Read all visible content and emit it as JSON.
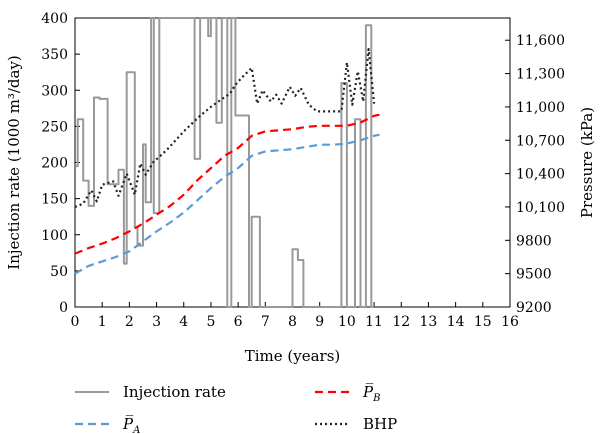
{
  "chart_data": {
    "type": "line",
    "title": "",
    "xlabel": "Time (years)",
    "ylabel_left": "Injection rate (1000 m³/day)",
    "ylabel_right": "Pressure (kPa)",
    "xlim": [
      0,
      16
    ],
    "ylim_left": [
      0,
      400
    ],
    "ylim_right": [
      9200,
      11800
    ],
    "x_ticks": [
      "0",
      "1",
      "2",
      "3",
      "4",
      "5",
      "6",
      "7",
      "8",
      "9",
      "10",
      "11",
      "12",
      "13",
      "14",
      "15",
      "16"
    ],
    "y_left_ticks": [
      "0",
      "50",
      "100",
      "150",
      "200",
      "250",
      "300",
      "350",
      "400"
    ],
    "y_right_ticks": [
      "9200",
      "9500",
      "9800",
      "10,100",
      "10,400",
      "10,700",
      "11,000",
      "11,300",
      "11,600"
    ],
    "grid": false,
    "legend_position": "bottom",
    "series": [
      {
        "name": "Injection rate",
        "axis": "left",
        "color": "#999999",
        "style": "solid",
        "x": [
          0,
          0.1,
          0.1,
          0.3,
          0.3,
          0.5,
          0.5,
          0.7,
          0.7,
          0.9,
          0.9,
          1.2,
          1.2,
          1.6,
          1.6,
          1.8,
          1.8,
          1.9,
          1.9,
          2.2,
          2.2,
          2.3,
          2.3,
          2.5,
          2.5,
          2.6,
          2.6,
          2.8,
          2.8,
          2.9,
          2.9,
          3.1,
          3.1,
          4.4,
          4.4,
          4.6,
          4.6,
          4.9,
          4.9,
          5.0,
          5.0,
          5.2,
          5.2,
          5.4,
          5.4,
          5.6,
          5.6,
          5.75,
          5.75,
          5.9,
          5.9,
          6.4,
          6.4,
          6.5,
          6.5,
          6.8,
          6.8,
          7.0,
          7.0,
          8.0,
          8.0,
          8.2,
          8.2,
          8.4,
          8.4,
          8.6,
          8.6,
          9.8,
          9.8,
          10.0,
          10.0,
          10.3,
          10.3,
          10.5,
          10.5,
          10.7,
          10.7,
          10.9,
          10.9,
          11.0
        ],
        "values": [
          195,
          195,
          260,
          260,
          175,
          175,
          140,
          140,
          290,
          290,
          288,
          288,
          170,
          170,
          190,
          190,
          60,
          60,
          325,
          325,
          110,
          110,
          85,
          85,
          225,
          225,
          145,
          145,
          400,
          400,
          130,
          130,
          400,
          400,
          205,
          205,
          400,
          400,
          375,
          375,
          400,
          400,
          255,
          255,
          400,
          400,
          0,
          0,
          400,
          400,
          265,
          265,
          0,
          0,
          125,
          125,
          0,
          0,
          0,
          0,
          80,
          80,
          65,
          65,
          0,
          0,
          0,
          0,
          310,
          310,
          0,
          0,
          260,
          260,
          0,
          0,
          390,
          390,
          0,
          0
        ]
      },
      {
        "name": "P̅A",
        "axis": "right",
        "color": "#5b9bd5",
        "style": "dashed",
        "x": [
          0,
          0.5,
          1,
          1.5,
          2,
          2.5,
          3,
          3.5,
          4,
          4.5,
          5,
          5.5,
          6,
          6.5,
          7,
          7.5,
          8,
          8.5,
          9,
          9.5,
          10,
          10.5,
          11,
          11.2
        ],
        "values": [
          9500,
          9570,
          9610,
          9650,
          9700,
          9790,
          9880,
          9960,
          10050,
          10160,
          10270,
          10370,
          10450,
          10560,
          10600,
          10610,
          10620,
          10640,
          10660,
          10660,
          10670,
          10700,
          10740,
          10750
        ]
      },
      {
        "name": "P̅B",
        "axis": "right",
        "color": "#ff0000",
        "style": "dashed",
        "x": [
          0,
          0.5,
          1,
          1.5,
          2,
          2.5,
          3,
          3.5,
          4,
          4.5,
          5,
          5.5,
          6,
          6.5,
          7,
          7.5,
          8,
          8.5,
          9,
          9.5,
          10,
          10.5,
          11,
          11.2
        ],
        "values": [
          9680,
          9730,
          9770,
          9820,
          9880,
          9950,
          10030,
          10110,
          10210,
          10340,
          10450,
          10560,
          10630,
          10740,
          10780,
          10790,
          10800,
          10820,
          10830,
          10830,
          10830,
          10860,
          10920,
          10930
        ]
      },
      {
        "name": "BHP",
        "axis": "right",
        "color": "#222222",
        "style": "dotted",
        "x": [
          0,
          0.3,
          0.6,
          0.8,
          1.0,
          1.4,
          1.6,
          1.9,
          2.2,
          2.4,
          2.6,
          2.9,
          3.1,
          3.4,
          3.7,
          4.0,
          4.3,
          4.6,
          5.0,
          5.4,
          5.7,
          5.9,
          6.2,
          6.5,
          6.7,
          6.9,
          7.2,
          7.4,
          7.6,
          7.9,
          8.1,
          8.3,
          8.6,
          8.9,
          9.3,
          9.8,
          10.0,
          10.2,
          10.4,
          10.6,
          10.8,
          11.0
        ],
        "values": [
          10100,
          10130,
          10250,
          10150,
          10300,
          10330,
          10200,
          10400,
          10210,
          10490,
          10390,
          10510,
          10550,
          10620,
          10700,
          10780,
          10850,
          10920,
          11000,
          11070,
          11120,
          11200,
          11280,
          11350,
          11030,
          11150,
          11050,
          11110,
          11030,
          11180,
          11100,
          11170,
          11020,
          10960,
          10960,
          10960,
          11400,
          11020,
          11320,
          11050,
          11520,
          11030
        ]
      }
    ]
  }
}
